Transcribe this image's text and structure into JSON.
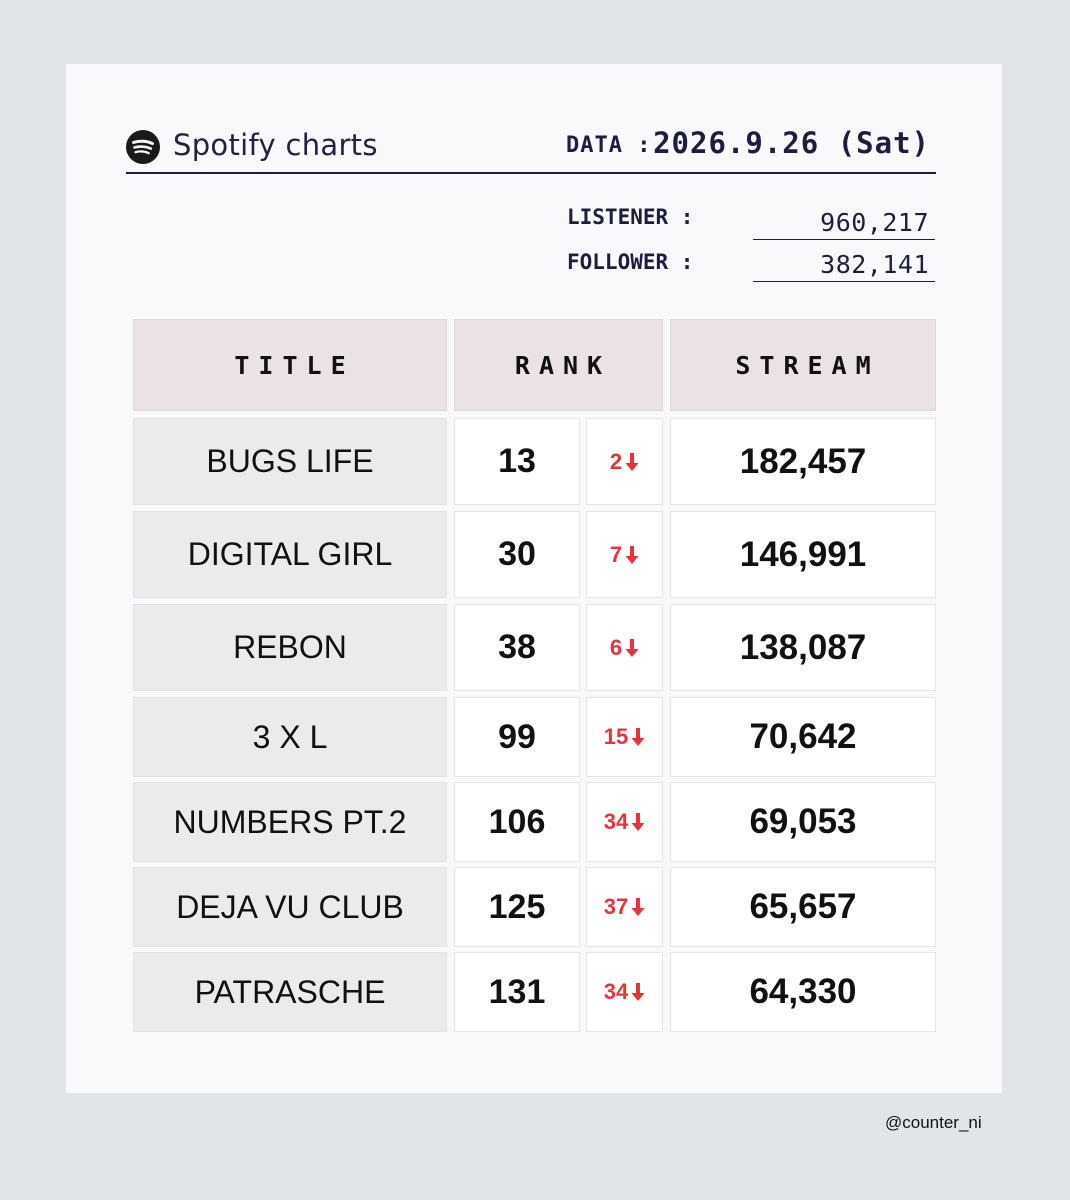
{
  "brand": "Spotify charts",
  "date_label": "DATA :",
  "date_value": "2026.9.26 (Sat)",
  "stats": [
    {
      "label": "LISTENER :",
      "value": "960,217"
    },
    {
      "label": "FOLLOWER :",
      "value": "382,141"
    }
  ],
  "columns": {
    "title": "TITLE",
    "rank": "RANK",
    "stream": "STREAM"
  },
  "rows": [
    {
      "title": "BUGS LIFE",
      "rank": "13",
      "change": "2",
      "direction": "down",
      "stream": "182,457"
    },
    {
      "title": "DIGITAL GIRL",
      "rank": "30",
      "change": "7",
      "direction": "down",
      "stream": "146,991"
    },
    {
      "title": "REBON",
      "rank": "38",
      "change": "6",
      "direction": "down",
      "stream": "138,087"
    },
    {
      "title": "3 X L",
      "rank": "99",
      "change": "15",
      "direction": "down",
      "stream": "70,642"
    },
    {
      "title": "NUMBERS PT.2",
      "rank": "106",
      "change": "34",
      "direction": "down",
      "stream": "69,053"
    },
    {
      "title": "DEJA VU CLUB",
      "rank": "125",
      "change": "37",
      "direction": "down",
      "stream": "65,657"
    },
    {
      "title": "PATRASCHE",
      "rank": "131",
      "change": "34",
      "direction": "down",
      "stream": "64,330"
    }
  ],
  "credit": "@counter_ni",
  "colors": {
    "accent_down": "#e8333a",
    "navy": "#1d1e3d",
    "header_bg": "#ebe2e8",
    "title_bg": "#ebebec"
  },
  "icons": {
    "logo": "spotify-logo-icon",
    "change": "down-arrow-icon"
  }
}
